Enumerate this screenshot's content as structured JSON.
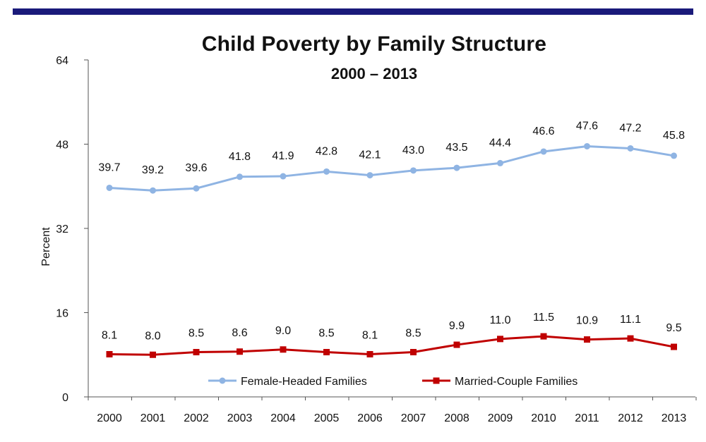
{
  "colors": {
    "top_bar": "#1a1a7a",
    "female_series": "#8fb4e3",
    "married_series": "#c00000",
    "axis": "#555555"
  },
  "chart_data": {
    "type": "line",
    "title": "Child Poverty by Family Structure",
    "subtitle": "2000 – 2013",
    "ylabel": "Percent",
    "xlabel": "",
    "ylim": [
      0,
      64
    ],
    "yticks": [
      "0",
      "16",
      "32",
      "48",
      "64"
    ],
    "grid": false,
    "legend_position": "bottom-center",
    "categories": [
      "2000",
      "2001",
      "2002",
      "2003",
      "2004",
      "2005",
      "2006",
      "2007",
      "2008",
      "2009",
      "2010",
      "2011",
      "2012",
      "2013"
    ],
    "series": [
      {
        "name": "Female-Headed Families",
        "marker": "circle",
        "values": [
          39.7,
          39.2,
          39.6,
          41.8,
          41.9,
          42.8,
          42.1,
          43.0,
          43.5,
          44.4,
          46.6,
          47.6,
          47.2,
          45.8
        ],
        "labels": [
          "39.7",
          "39.2",
          "39.6",
          "41.8",
          "41.9",
          "42.8",
          "42.1",
          "43.0",
          "43.5",
          "44.4",
          "46.6",
          "47.6",
          "47.2",
          "45.8"
        ]
      },
      {
        "name": "Married-Couple Families",
        "marker": "square",
        "values": [
          8.1,
          8.0,
          8.5,
          8.6,
          9.0,
          8.5,
          8.1,
          8.5,
          9.9,
          11.0,
          11.5,
          10.9,
          11.1,
          9.5
        ],
        "labels": [
          "8.1",
          "8.0",
          "8.5",
          "8.6",
          "9.0",
          "8.5",
          "8.1",
          "8.5",
          "9.9",
          "11.0",
          "11.5",
          "10.9",
          "11.1",
          "9.5"
        ]
      }
    ]
  }
}
